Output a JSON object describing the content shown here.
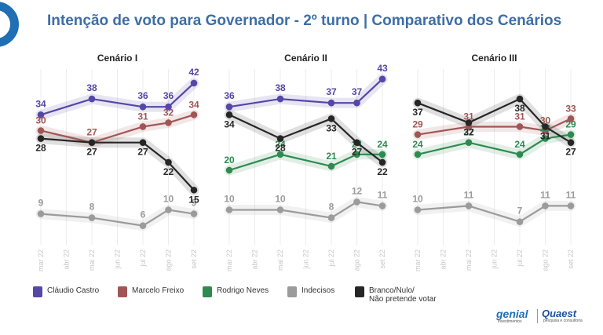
{
  "title": "Intenção de voto para Governador - 2º turno | Comparativo dos Cenários",
  "colors": {
    "castro": "#5547a6",
    "freixo": "#a15656",
    "neves": "#2e8a4f",
    "indecisos": "#9b9b9b",
    "branco": "#262626",
    "title": "#3d6ea6"
  },
  "legend": [
    {
      "key": "castro",
      "label": "Cláudio Castro"
    },
    {
      "key": "freixo",
      "label": "Marcelo Freixo"
    },
    {
      "key": "neves",
      "label": "Rodrigo Neves"
    },
    {
      "key": "indecisos",
      "label": "Indecisos"
    },
    {
      "key": "branco",
      "label": "Branco/Nulo/\nNão pretende votar"
    }
  ],
  "brand": {
    "name1": "genial",
    "sub1": "investimentos",
    "name2": "Quaest",
    "sub2": "pesquisa e consultoria"
  },
  "chart_data": [
    {
      "type": "line",
      "title": "Cenário I",
      "x": [
        "mar 22",
        "abr 22",
        "mai 22",
        "jun 22",
        "jul 22",
        "ago 22",
        "set 22"
      ],
      "series": [
        {
          "name": "Cláudio Castro",
          "key": "castro",
          "points": [
            [
              "mar 22",
              34
            ],
            [
              "mai 22",
              38
            ],
            [
              "jul 22",
              36
            ],
            [
              "ago 22",
              36
            ],
            [
              "set 22",
              42
            ]
          ]
        },
        {
          "name": "Marcelo Freixo",
          "key": "freixo",
          "points": [
            [
              "mar 22",
              30
            ],
            [
              "mai 22",
              27
            ],
            [
              "jul 22",
              31
            ],
            [
              "ago 22",
              32
            ],
            [
              "set 22",
              34
            ]
          ]
        },
        {
          "name": "Indecisos",
          "key": "indecisos",
          "points": [
            [
              "mar 22",
              9
            ],
            [
              "mai 22",
              8
            ],
            [
              "jul 22",
              6
            ],
            [
              "ago 22",
              10
            ],
            [
              "set 22",
              9
            ]
          ]
        },
        {
          "name": "Branco/Nulo/Não pretende votar",
          "key": "branco",
          "points": [
            [
              "mar 22",
              28
            ],
            [
              "mai 22",
              27
            ],
            [
              "jul 22",
              27
            ],
            [
              "ago 22",
              22
            ],
            [
              "set 22",
              15
            ]
          ]
        }
      ]
    },
    {
      "type": "line",
      "title": "Cenário II",
      "x": [
        "mar 22",
        "abr 22",
        "mai 22",
        "jun 22",
        "jul 22",
        "ago 22",
        "set 22"
      ],
      "series": [
        {
          "name": "Cláudio Castro",
          "key": "castro",
          "points": [
            [
              "mar 22",
              36
            ],
            [
              "mai 22",
              38
            ],
            [
              "jul 22",
              37
            ],
            [
              "ago 22",
              37
            ],
            [
              "set 22",
              43
            ]
          ]
        },
        {
          "name": "Rodrigo Neves",
          "key": "neves",
          "points": [
            [
              "mar 22",
              20
            ],
            [
              "mai 22",
              24
            ],
            [
              "jul 22",
              21
            ],
            [
              "ago 22",
              24
            ],
            [
              "set 22",
              24
            ]
          ]
        },
        {
          "name": "Indecisos",
          "key": "indecisos",
          "points": [
            [
              "mar 22",
              10
            ],
            [
              "mai 22",
              10
            ],
            [
              "jul 22",
              8
            ],
            [
              "ago 22",
              12
            ],
            [
              "set 22",
              11
            ]
          ]
        },
        {
          "name": "Branco/Nulo/Não pretende votar",
          "key": "branco",
          "points": [
            [
              "mar 22",
              34
            ],
            [
              "mai 22",
              28
            ],
            [
              "jul 22",
              33
            ],
            [
              "ago 22",
              27
            ],
            [
              "set 22",
              22
            ]
          ]
        }
      ]
    },
    {
      "type": "line",
      "title": "Cenário III",
      "x": [
        "mar 22",
        "abr 22",
        "mai 22",
        "jun 22",
        "jul 22",
        "ago 22",
        "set 22"
      ],
      "series": [
        {
          "name": "Marcelo Freixo",
          "key": "freixo",
          "points": [
            [
              "mar 22",
              29
            ],
            [
              "mai 22",
              31
            ],
            [
              "jul 22",
              31
            ],
            [
              "ago 22",
              30
            ],
            [
              "set 22",
              33
            ]
          ]
        },
        {
          "name": "Rodrigo Neves",
          "key": "neves",
          "points": [
            [
              "mar 22",
              24
            ],
            [
              "mai 22",
              27
            ],
            [
              "jul 22",
              24
            ],
            [
              "ago 22",
              28
            ],
            [
              "set 22",
              29
            ]
          ]
        },
        {
          "name": "Indecisos",
          "key": "indecisos",
          "points": [
            [
              "mar 22",
              10
            ],
            [
              "mai 22",
              11
            ],
            [
              "jul 22",
              7
            ],
            [
              "ago 22",
              11
            ],
            [
              "set 22",
              11
            ]
          ]
        },
        {
          "name": "Branco/Nulo/Não pretende votar",
          "key": "branco",
          "points": [
            [
              "mar 22",
              37
            ],
            [
              "mai 22",
              32
            ],
            [
              "jul 22",
              38
            ],
            [
              "ago 22",
              31
            ],
            [
              "set 22",
              27
            ]
          ]
        }
      ]
    }
  ]
}
